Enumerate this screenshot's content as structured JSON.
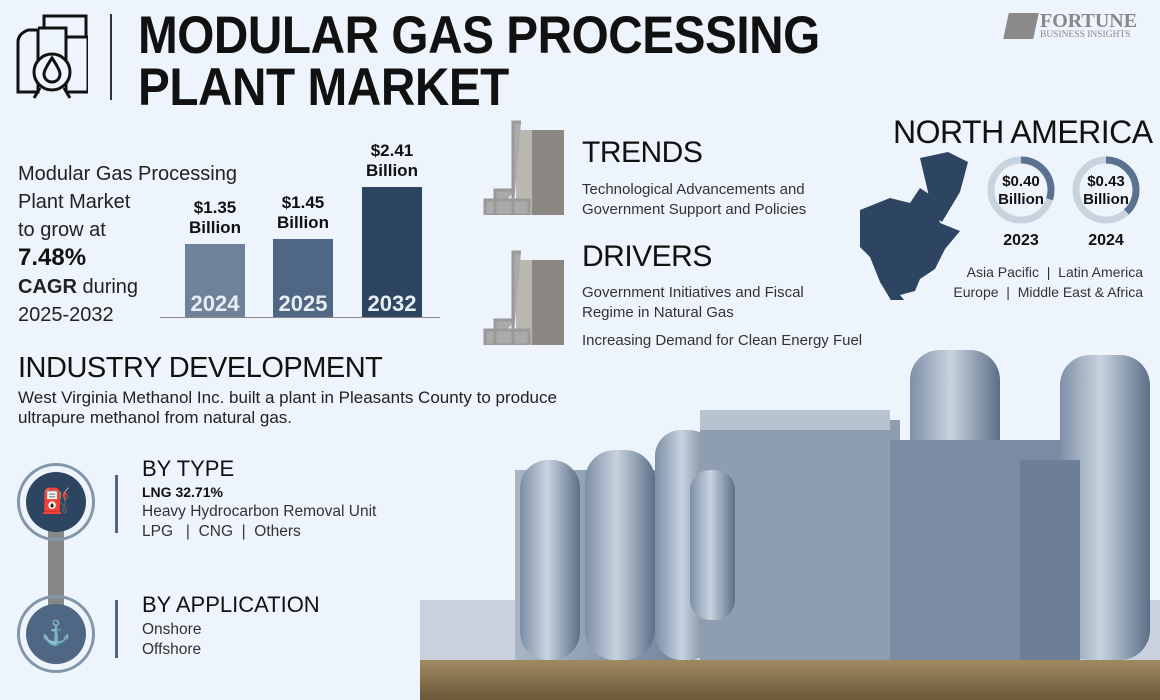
{
  "header": {
    "title_line1": "MODULAR GAS PROCESSING",
    "title_line2": "PLANT MARKET",
    "logo_line1": "FORTUNE",
    "logo_line2": "BUSINESS INSIGHTS",
    "icon": "gas-plant-icon"
  },
  "growth": {
    "line1": "Modular Gas Processing",
    "line2": "Plant Market",
    "line3": "to grow at",
    "cagr": "7.48%",
    "cagr_label": "CAGR",
    "during": " during",
    "period": "2025-2032"
  },
  "chart_data": {
    "type": "bar",
    "categories": [
      "2024",
      "2025",
      "2032"
    ],
    "values": [
      1.35,
      1.45,
      2.41
    ],
    "value_labels": [
      "$1.35",
      "$1.45",
      "$2.41"
    ],
    "unit": "Billion",
    "colors": [
      "#6e8299",
      "#4f6784",
      "#2d4560"
    ]
  },
  "trends": {
    "title": "TRENDS",
    "text1": "Technological Advancements and",
    "text2": "Government Support and Policies"
  },
  "drivers": {
    "title": "DRIVERS",
    "text1": "Government Initiatives and Fiscal",
    "text2": "Regime in Natural Gas",
    "text3": "Increasing Demand for Clean Energy Fuel"
  },
  "region": {
    "title": "NORTH AMERICA",
    "donuts": [
      {
        "value": "$0.40",
        "unit": "Billion",
        "year": "2023",
        "fill": 0.3
      },
      {
        "value": "$0.43",
        "unit": "Billion",
        "year": "2024",
        "fill": 0.38
      }
    ],
    "others1": "Asia Pacific  |  Latin America",
    "others2": "Europe  |  Middle East & Africa"
  },
  "industry": {
    "title": "INDUSTRY DEVELOPMENT",
    "text1": "West Virginia Methanol Inc. built a plant in Pleasants County to produce",
    "text2": "ultrapure methanol from natural gas."
  },
  "by_type": {
    "title": "BY TYPE",
    "lead": "LNG 32.71%",
    "item1": "Heavy Hydrocarbon Removal Unit",
    "item2": "LPG   |  CNG  |  Others"
  },
  "by_application": {
    "title": "BY APPLICATION",
    "item1": "Onshore",
    "item2": "Offshore"
  },
  "colors": {
    "navy": "#2d4560",
    "bg": "#eef4fb"
  }
}
